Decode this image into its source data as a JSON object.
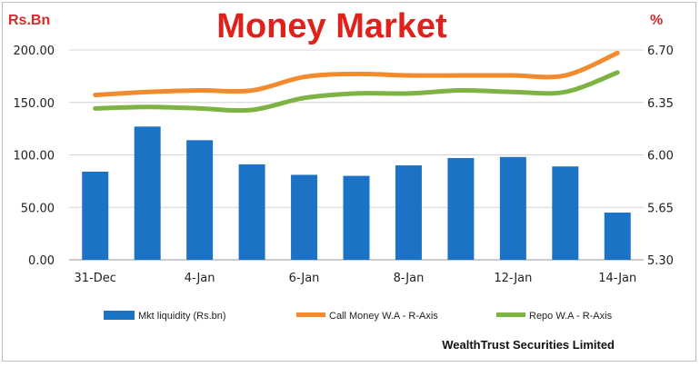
{
  "chart_data": {
    "type": "bar",
    "title": "Money Market",
    "left_axis_unit": "Rs.Bn",
    "right_axis_unit": "%",
    "categories": [
      "31-Dec",
      "",
      "4-Jan",
      "",
      "6-Jan",
      "",
      "8-Jan",
      "",
      "12-Jan",
      "",
      "14-Jan"
    ],
    "ylim": [
      0,
      200
    ],
    "y_ticks": [
      "0.00",
      "50.00",
      "100.00",
      "150.00",
      "200.00"
    ],
    "y2lim": [
      5.3,
      6.7
    ],
    "y2_ticks": [
      "5.30",
      "5.65",
      "6.00",
      "6.35",
      "6.70"
    ],
    "grid": true,
    "legend_position": "bottom",
    "series": [
      {
        "name": "Mkt liquidity (Rs.bn)",
        "type": "bar",
        "axis": "left",
        "color": "#1c73c6",
        "values": [
          84,
          127,
          114,
          91,
          81,
          80,
          90,
          97,
          98,
          89,
          45
        ]
      },
      {
        "name": "Call Money W.A - R-Axis",
        "type": "line",
        "axis": "right",
        "color": "#f28a2e",
        "values": [
          6.4,
          6.42,
          6.43,
          6.43,
          6.52,
          6.54,
          6.53,
          6.53,
          6.53,
          6.53,
          6.68
        ]
      },
      {
        "name": "Repo W.A - R-Axis",
        "type": "line",
        "axis": "right",
        "color": "#7cb342",
        "values": [
          6.31,
          6.32,
          6.31,
          6.3,
          6.38,
          6.41,
          6.41,
          6.43,
          6.42,
          6.42,
          6.55
        ]
      }
    ],
    "source": "WealthTrust Securities Limited"
  }
}
